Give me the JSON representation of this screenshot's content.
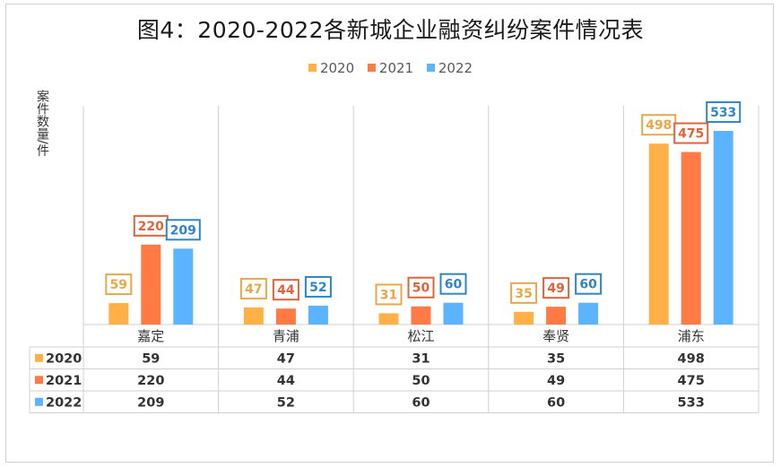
{
  "chart_data": {
    "type": "bar",
    "title": "图4：2020-2022各新城企业融资纠纷案件情况表",
    "ylabel": "案件数量/件",
    "xlabel": "",
    "categories": [
      "嘉定",
      "青浦",
      "松江",
      "奉贤",
      "浦东"
    ],
    "series": [
      {
        "name": "2020",
        "values": [
          59,
          47,
          31,
          35,
          498
        ],
        "color": "#FFB146"
      },
      {
        "name": "2021",
        "values": [
          220,
          44,
          50,
          49,
          475
        ],
        "color": "#FF7A45"
      },
      {
        "name": "2022",
        "values": [
          209,
          52,
          60,
          60,
          533
        ],
        "color": "#5CB3FF"
      }
    ],
    "ylim": [
      0,
      580
    ],
    "legend_position": "top",
    "grid": false,
    "data_table": true,
    "label_border_colors": [
      "#E8A849",
      "#E0643A",
      "#2E86C8"
    ]
  }
}
